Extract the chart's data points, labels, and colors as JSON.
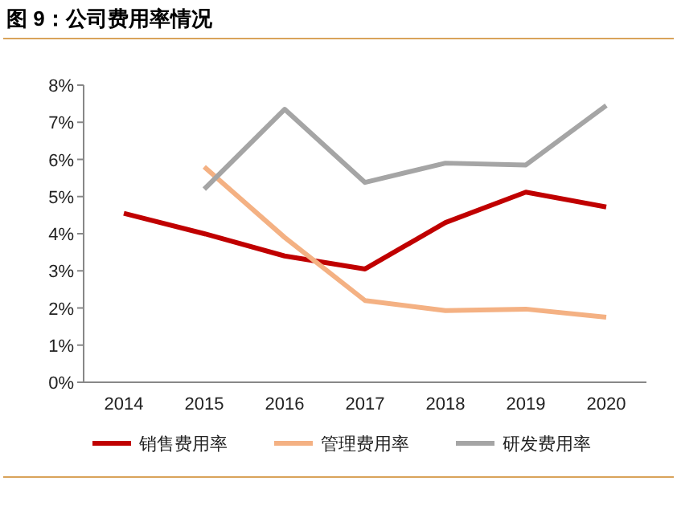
{
  "chart_data": {
    "type": "line",
    "title": "图 9：公司费用率情况",
    "categories": [
      "2014",
      "2015",
      "2016",
      "2017",
      "2018",
      "2019",
      "2020"
    ],
    "series": [
      {
        "name": "销售费用率",
        "color": "#c00000",
        "values": [
          4.55,
          4.0,
          3.4,
          3.05,
          4.3,
          5.12,
          4.72
        ]
      },
      {
        "name": "管理费用率",
        "color": "#f4b183",
        "values": [
          null,
          5.8,
          3.9,
          2.2,
          1.93,
          1.97,
          1.75
        ]
      },
      {
        "name": "研发费用率",
        "color": "#a5a5a5",
        "values": [
          null,
          5.2,
          7.35,
          5.38,
          5.9,
          5.85,
          7.45
        ]
      }
    ],
    "ylim": [
      0,
      8
    ],
    "yticks": [
      {
        "value": 0,
        "label": "0%"
      },
      {
        "value": 1,
        "label": "1%"
      },
      {
        "value": 2,
        "label": "2%"
      },
      {
        "value": 3,
        "label": "3%"
      },
      {
        "value": 4,
        "label": "4%"
      },
      {
        "value": 5,
        "label": "5%"
      },
      {
        "value": 6,
        "label": "6%"
      },
      {
        "value": 7,
        "label": "7%"
      },
      {
        "value": 8,
        "label": "8%"
      }
    ],
    "grid": false,
    "legend": "bottom",
    "marker": "none",
    "line_style": "solid"
  }
}
